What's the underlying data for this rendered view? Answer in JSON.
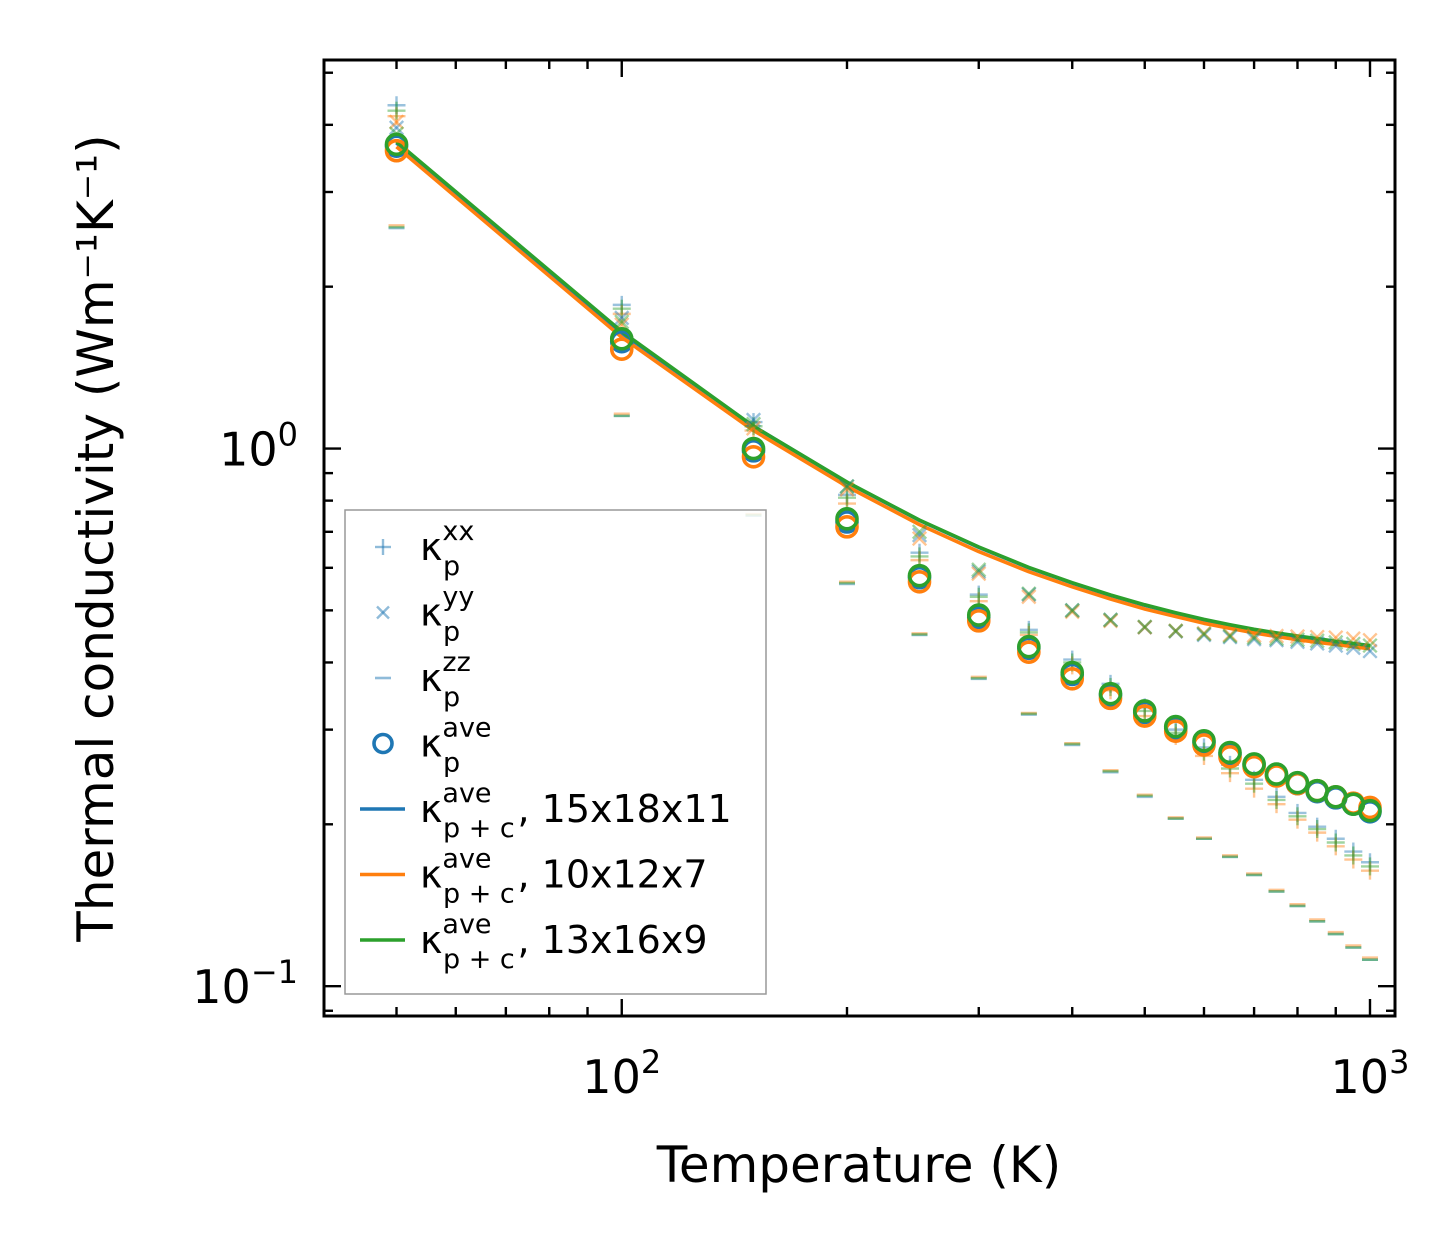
{
  "chart_data": {
    "type": "scatter",
    "xlabel": "Temperature (K)",
    "ylabel": "Thermal conductivity (Wm⁻¹K⁻¹)",
    "xscale": "log",
    "yscale": "log",
    "xlim": [
      40,
      1080
    ],
    "ylim": [
      0.088,
      5.28
    ],
    "x_tick_labels": [
      {
        "value": 100,
        "base": "10",
        "exp": "2"
      },
      {
        "value": 1000,
        "base": "10",
        "exp": "3"
      }
    ],
    "y_tick_labels": [
      {
        "value": 1.0,
        "base": "10",
        "exp": "0"
      },
      {
        "value": 0.1,
        "base": "10",
        "exp": "−1"
      }
    ],
    "legend_position": "lower-left",
    "colors": {
      "c15x18x11": "#1f77b4",
      "c10x12x7": "#ff7f0e",
      "c13x16x9": "#2ca02c"
    },
    "temperatures": [
      50,
      100,
      150,
      200,
      250,
      300,
      350,
      400,
      450,
      500,
      550,
      600,
      650,
      700,
      750,
      800,
      850,
      900,
      950,
      1000
    ],
    "series": [
      {
        "name": "κp^xx",
        "marker": "plus",
        "color": "c15x18x11",
        "values": [
          4.35,
          1.85,
          1.12,
          0.82,
          0.64,
          0.535,
          0.46,
          0.405,
          0.365,
          0.33,
          0.3,
          0.278,
          0.258,
          0.242,
          0.225,
          0.21,
          0.198,
          0.188,
          0.178,
          0.17
        ]
      },
      {
        "name": "κp^xx",
        "marker": "plus",
        "color": "c10x12x7",
        "values": [
          4.15,
          1.78,
          1.08,
          0.79,
          0.62,
          0.52,
          0.45,
          0.395,
          0.355,
          0.318,
          0.292,
          0.268,
          0.249,
          0.233,
          0.218,
          0.204,
          0.193,
          0.182,
          0.172,
          0.164
        ]
      },
      {
        "name": "κp^xx",
        "marker": "plus",
        "color": "c13x16x9",
        "values": [
          4.25,
          1.82,
          1.1,
          0.81,
          0.63,
          0.53,
          0.455,
          0.4,
          0.36,
          0.325,
          0.296,
          0.273,
          0.254,
          0.238,
          0.222,
          0.207,
          0.196,
          0.185,
          0.175,
          0.167
        ]
      },
      {
        "name": "κp^yy",
        "marker": "cross",
        "color": "c15x18x11",
        "values": [
          3.95,
          1.75,
          1.13,
          0.85,
          0.69,
          0.59,
          0.535,
          0.5,
          0.48,
          0.465,
          0.457,
          0.45,
          0.446,
          0.442,
          0.44,
          0.437,
          0.434,
          0.43,
          0.426,
          0.42
        ]
      },
      {
        "name": "κp^yy",
        "marker": "cross",
        "color": "c10x12x7",
        "values": [
          4.05,
          1.7,
          1.09,
          0.84,
          0.68,
          0.585,
          0.53,
          0.497,
          0.478,
          0.465,
          0.458,
          0.453,
          0.45,
          0.449,
          0.448,
          0.447,
          0.446,
          0.445,
          0.443,
          0.44
        ]
      },
      {
        "name": "κp^yy",
        "marker": "cross",
        "color": "c13x16x9",
        "values": [
          3.85,
          1.72,
          1.11,
          0.85,
          0.7,
          0.595,
          0.537,
          0.5,
          0.48,
          0.466,
          0.458,
          0.452,
          0.448,
          0.445,
          0.443,
          0.441,
          0.439,
          0.436,
          0.433,
          0.43
        ]
      },
      {
        "name": "κp^zz",
        "marker": "hline",
        "color": "c15x18x11",
        "values": [
          2.57,
          1.15,
          0.75,
          0.56,
          0.45,
          0.373,
          0.32,
          0.281,
          0.25,
          0.225,
          0.205,
          0.188,
          0.174,
          0.161,
          0.15,
          0.141,
          0.132,
          0.125,
          0.118,
          0.112
        ]
      },
      {
        "name": "κp^zz",
        "marker": "hline",
        "color": "c10x12x7",
        "values": [
          2.6,
          1.16,
          0.755,
          0.565,
          0.453,
          0.376,
          0.322,
          0.283,
          0.252,
          0.227,
          0.206,
          0.189,
          0.175,
          0.162,
          0.151,
          0.142,
          0.133,
          0.126,
          0.119,
          0.113
        ]
      },
      {
        "name": "κp^zz",
        "marker": "hline",
        "color": "c13x16x9",
        "values": [
          2.58,
          1.15,
          0.752,
          0.562,
          0.451,
          0.374,
          0.321,
          0.282,
          0.251,
          0.226,
          0.205,
          0.188,
          0.174,
          0.161,
          0.15,
          0.141,
          0.132,
          0.125,
          0.118,
          0.112
        ]
      },
      {
        "name": "κp^ave",
        "marker": "circle",
        "color": "c15x18x11",
        "values": [
          3.65,
          1.58,
          0.99,
          0.73,
          0.575,
          0.485,
          0.425,
          0.38,
          0.348,
          0.323,
          0.302,
          0.284,
          0.27,
          0.258,
          0.247,
          0.238,
          0.23,
          0.224,
          0.218,
          0.211
        ]
      },
      {
        "name": "κp^ave",
        "marker": "circle",
        "color": "c10x12x7",
        "values": [
          3.58,
          1.53,
          0.965,
          0.715,
          0.565,
          0.478,
          0.418,
          0.373,
          0.343,
          0.318,
          0.298,
          0.281,
          0.267,
          0.256,
          0.246,
          0.238,
          0.231,
          0.225,
          0.219,
          0.215
        ]
      },
      {
        "name": "κp^ave",
        "marker": "circle",
        "color": "c13x16x9",
        "values": [
          3.68,
          1.6,
          1.0,
          0.74,
          0.58,
          0.49,
          0.428,
          0.383,
          0.35,
          0.325,
          0.304,
          0.286,
          0.272,
          0.259,
          0.248,
          0.239,
          0.231,
          0.225,
          0.218,
          0.212
        ]
      },
      {
        "name": "κp+c^ave, 15x18x11",
        "marker": "line",
        "color": "c15x18x11",
        "values": [
          3.7,
          1.64,
          1.1,
          0.865,
          0.735,
          0.655,
          0.6,
          0.562,
          0.533,
          0.511,
          0.494,
          0.48,
          0.469,
          0.46,
          0.453,
          0.447,
          0.442,
          0.437,
          0.433,
          0.429
        ]
      },
      {
        "name": "κp+c^ave, 10x12x7",
        "marker": "line",
        "color": "c10x12x7",
        "values": [
          3.64,
          1.61,
          1.08,
          0.85,
          0.722,
          0.643,
          0.59,
          0.553,
          0.525,
          0.503,
          0.487,
          0.473,
          0.463,
          0.454,
          0.447,
          0.441,
          0.436,
          0.432,
          0.428,
          0.424
        ]
      },
      {
        "name": "κp+c^ave, 13x16x9",
        "marker": "line",
        "color": "c13x16x9",
        "values": [
          3.72,
          1.65,
          1.1,
          0.866,
          0.736,
          0.656,
          0.601,
          0.563,
          0.534,
          0.512,
          0.495,
          0.481,
          0.47,
          0.461,
          0.454,
          0.448,
          0.443,
          0.438,
          0.434,
          0.43
        ]
      }
    ],
    "legend": [
      {
        "marker": "plus",
        "color": "c15x18x11",
        "sym": "κ",
        "sub": "p",
        "sup": "xx",
        "suffix": ""
      },
      {
        "marker": "cross",
        "color": "c15x18x11",
        "sym": "κ",
        "sub": "p",
        "sup": "yy",
        "suffix": ""
      },
      {
        "marker": "hline",
        "color": "c15x18x11",
        "sym": "κ",
        "sub": "p",
        "sup": "zz",
        "suffix": ""
      },
      {
        "marker": "circle",
        "color": "c15x18x11",
        "sym": "κ",
        "sub": "p",
        "sup": "ave",
        "suffix": ""
      },
      {
        "marker": "line",
        "color": "c15x18x11",
        "sym": "κ",
        "sub": "p + c",
        "sup": "ave",
        "suffix": ", 15x18x11"
      },
      {
        "marker": "line",
        "color": "c10x12x7",
        "sym": "κ",
        "sub": "p + c",
        "sup": "ave",
        "suffix": ", 10x12x7"
      },
      {
        "marker": "line",
        "color": "c13x16x9",
        "sym": "κ",
        "sub": "p + c",
        "sup": "ave",
        "suffix": ", 13x16x9"
      }
    ]
  }
}
